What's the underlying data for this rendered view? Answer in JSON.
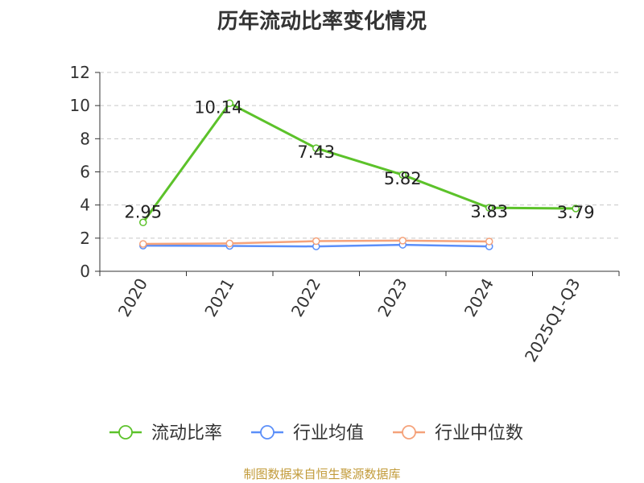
{
  "chart_data": {
    "type": "line",
    "title": "历年流动比率变化情况",
    "categories": [
      "2020",
      "2021",
      "2022",
      "2023",
      "2024",
      "2025Q1-Q3"
    ],
    "series": [
      {
        "name": "流动比率",
        "color": "#5cc22a",
        "values": [
          2.95,
          10.14,
          7.43,
          5.82,
          3.83,
          3.79
        ],
        "labels": [
          "2.95",
          "10.14",
          "7.43",
          "5.82",
          "3.83",
          "3.79"
        ]
      },
      {
        "name": "行业均值",
        "color": "#5b8ff9",
        "values": [
          1.55,
          1.53,
          1.5,
          1.6,
          1.5,
          null
        ]
      },
      {
        "name": "行业中位数",
        "color": "#f5a27a",
        "values": [
          1.65,
          1.68,
          1.82,
          1.85,
          1.8,
          null
        ]
      }
    ],
    "yticks": [
      "0",
      "2",
      "4",
      "6",
      "8",
      "10",
      "12"
    ],
    "ylim": [
      0,
      12
    ],
    "grid": true,
    "legend_position": "bottom",
    "source_note": "制图数据来自恒生聚源数据库"
  }
}
